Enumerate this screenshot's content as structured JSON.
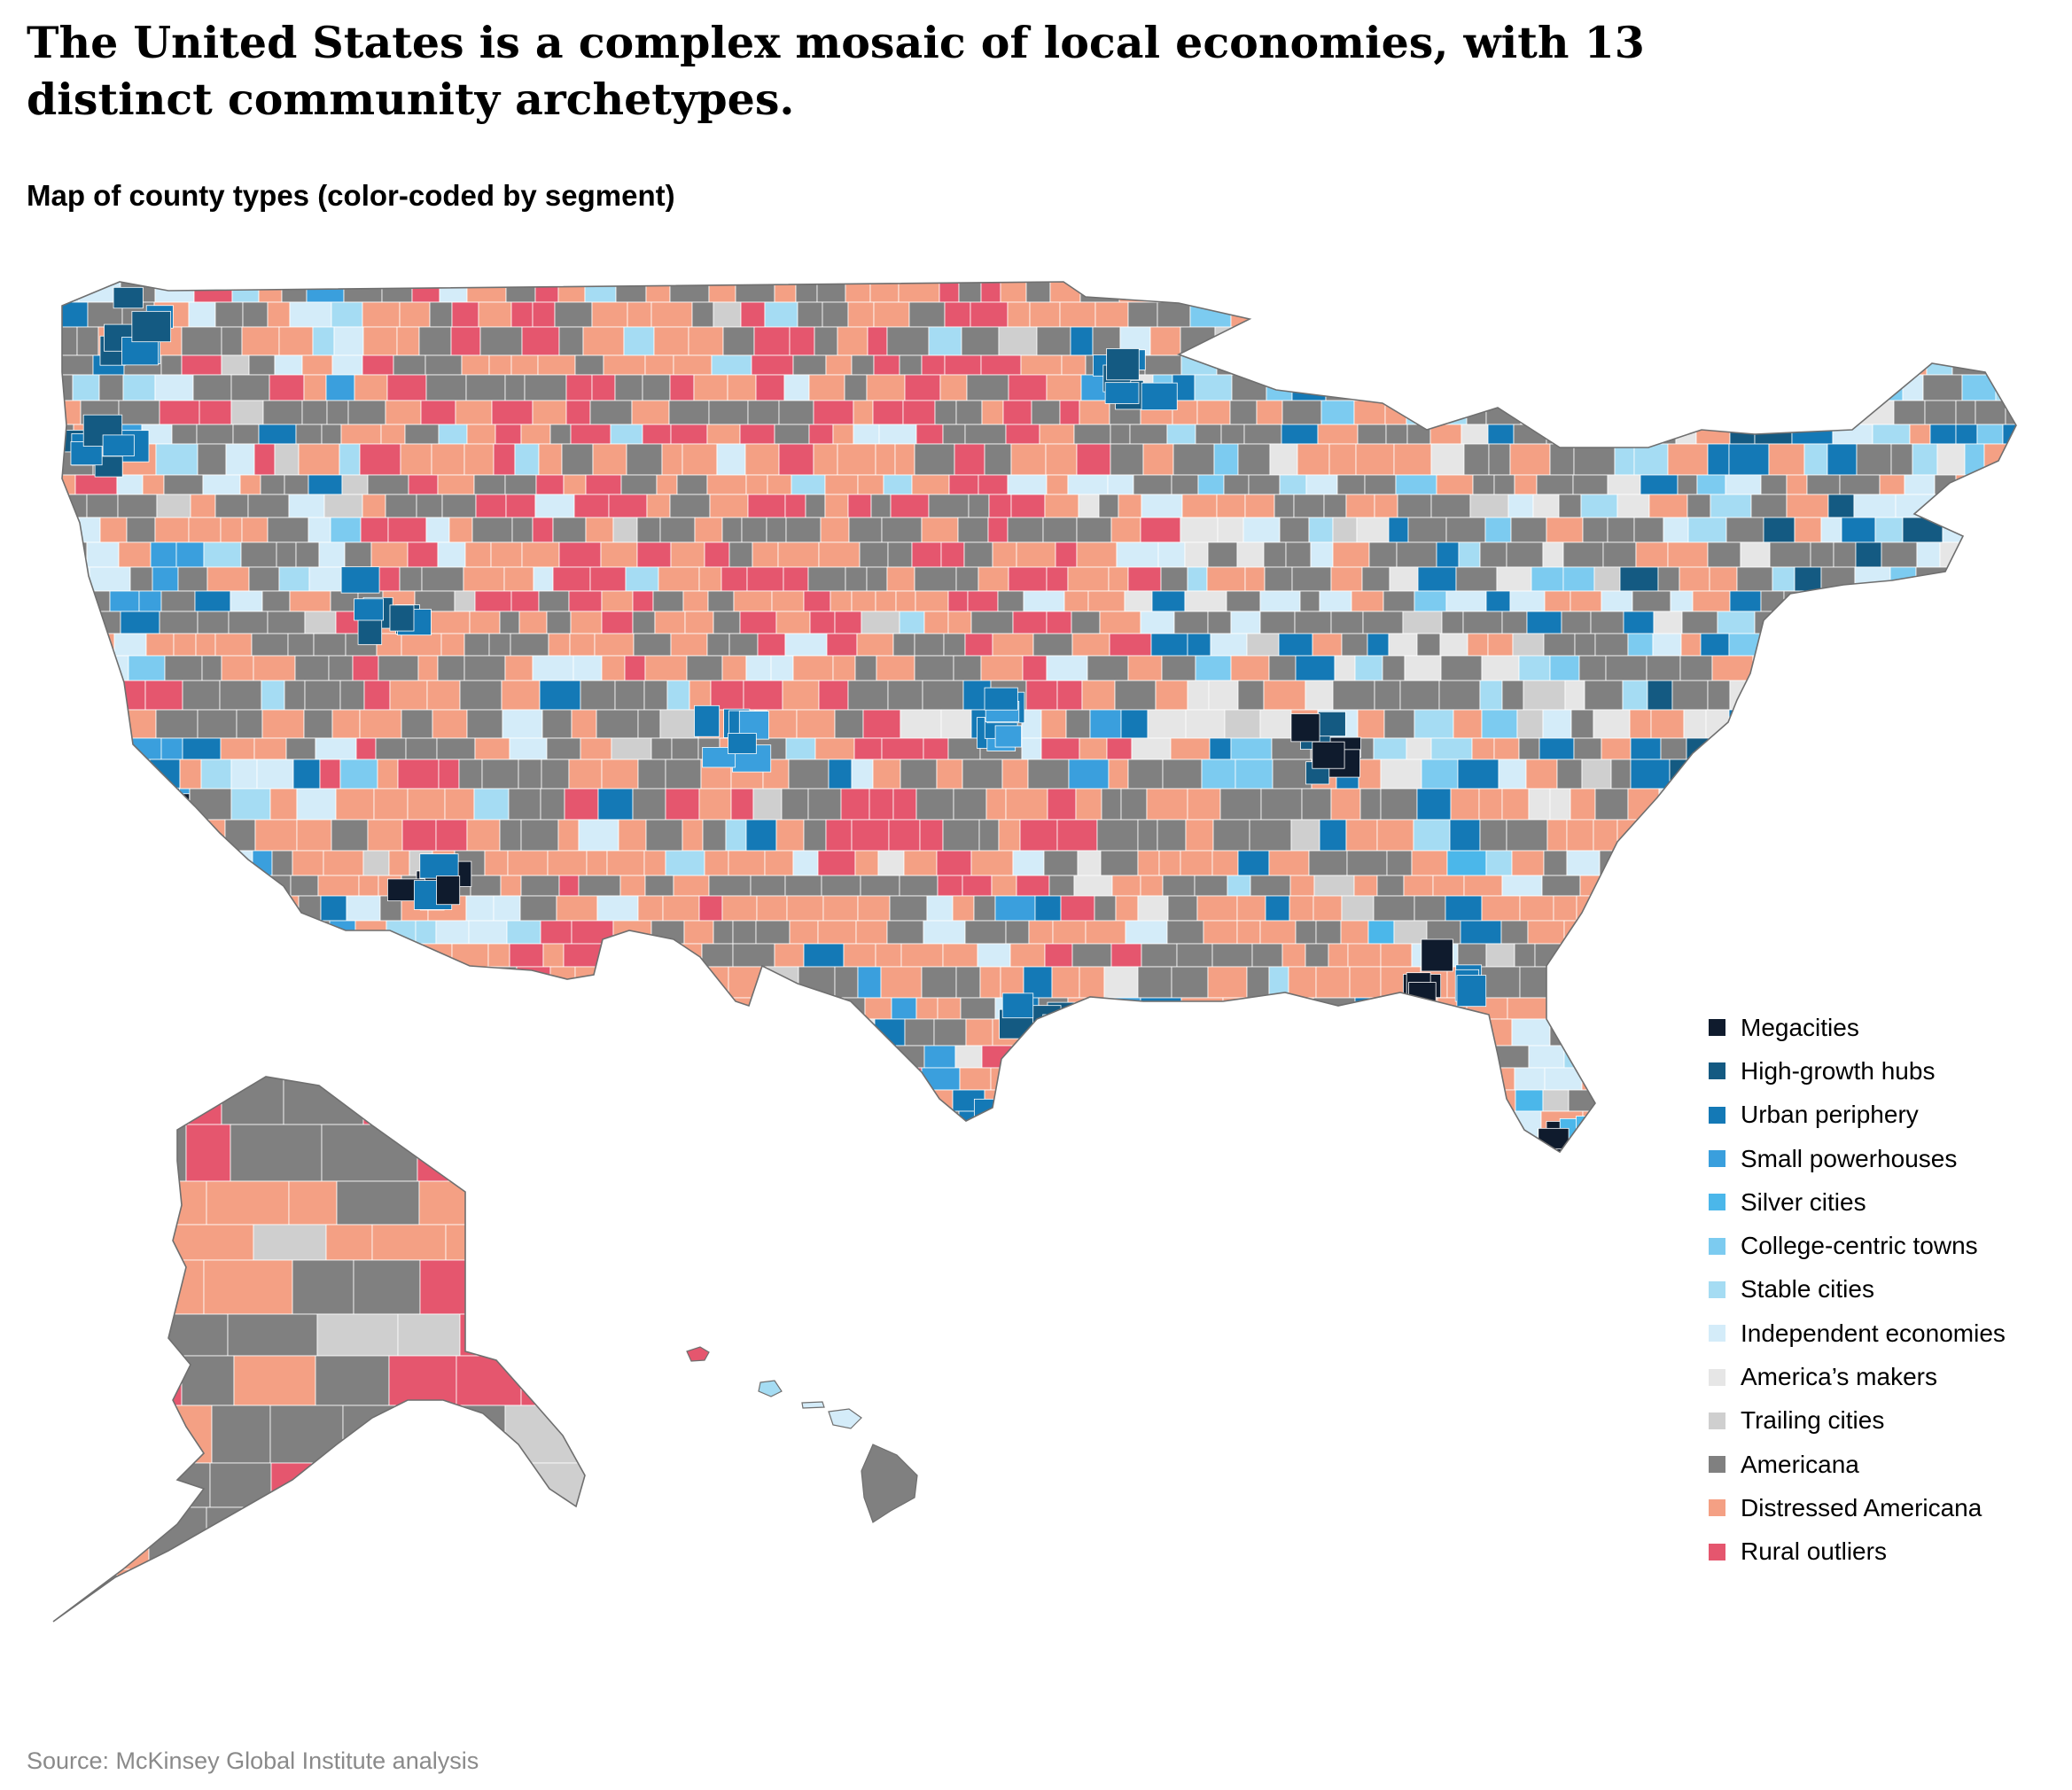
{
  "title": "The United States is a complex mosaic of local economies, with 13 distinct community archetypes.",
  "subtitle": "Map of county types (color-coded by segment)",
  "source": "Source: McKinsey Global Institute analysis",
  "legend": [
    {
      "label": "Megacities",
      "color": "#0f1b2d"
    },
    {
      "label": "High-growth hubs",
      "color": "#145a82"
    },
    {
      "label": "Urban periphery",
      "color": "#1479b6"
    },
    {
      "label": "Small powerhouses",
      "color": "#3a9fdd"
    },
    {
      "label": "Silver cities",
      "color": "#4bb7ea"
    },
    {
      "label": "College-centric towns",
      "color": "#7ccbf0"
    },
    {
      "label": "Stable cities",
      "color": "#a5dcf3"
    },
    {
      "label": "Independent economies",
      "color": "#d4ecf9"
    },
    {
      "label": "America’s makers",
      "color": "#e6e6e6"
    },
    {
      "label": "Trailing cities",
      "color": "#cfcfcf"
    },
    {
      "label": "Americana",
      "color": "#808080"
    },
    {
      "label": "Distressed Americana",
      "color": "#f4a084"
    },
    {
      "label": "Rural outliers",
      "color": "#e5566e"
    }
  ]
}
